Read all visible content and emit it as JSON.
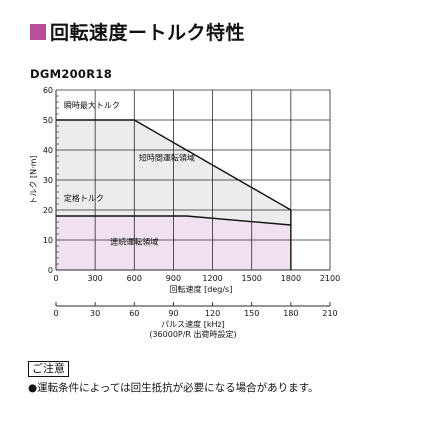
{
  "title": "回転速度ートルク特性",
  "model": "DGM200R18",
  "colors": {
    "title_square": "#b6509c",
    "continuous_region": "#efe1ef",
    "short_time_region": "#ececec",
    "grid": "#2a2a2a",
    "curve": "#111111"
  },
  "chart_data": {
    "type": "area",
    "xlabel": "回転速度 [deg/s]",
    "ylabel": "トルク [N·m]",
    "xlim": [
      0,
      2100
    ],
    "ylim": [
      0,
      60
    ],
    "x_ticks": [
      0,
      300,
      600,
      900,
      1200,
      1500,
      1800,
      2100
    ],
    "y_ticks": [
      0,
      10,
      20,
      30,
      40,
      50,
      60
    ],
    "grid": true,
    "secondary_x_axis": {
      "label_line1": "パルス速度 [kHz]",
      "label_line2": "(36000P/R 出荷時設定)",
      "ticks": [
        0,
        30,
        60,
        90,
        120,
        150,
        180,
        210
      ]
    },
    "series": [
      {
        "name": "瞬時最大トルク",
        "x": [
          0,
          600,
          1800
        ],
        "y": [
          50,
          50,
          20
        ]
      },
      {
        "name": "定格トルク",
        "x": [
          0,
          1000,
          1800
        ],
        "y": [
          18,
          18,
          15
        ]
      }
    ],
    "regions": [
      {
        "name": "連続運転領域",
        "label_x": 600,
        "label_y": 8.5
      },
      {
        "name": "短時間運転領域",
        "label_x": 850,
        "label_y": 36.5
      }
    ],
    "annotations": [
      {
        "text": "瞬時最大トルク",
        "x": 60,
        "y": 55
      },
      {
        "text": "定格トルク",
        "x": 60,
        "y": 24
      }
    ]
  },
  "notice": {
    "heading": "ご注意",
    "text": "●運転条件によっては回生抵抗が必要になる場合があります。"
  }
}
